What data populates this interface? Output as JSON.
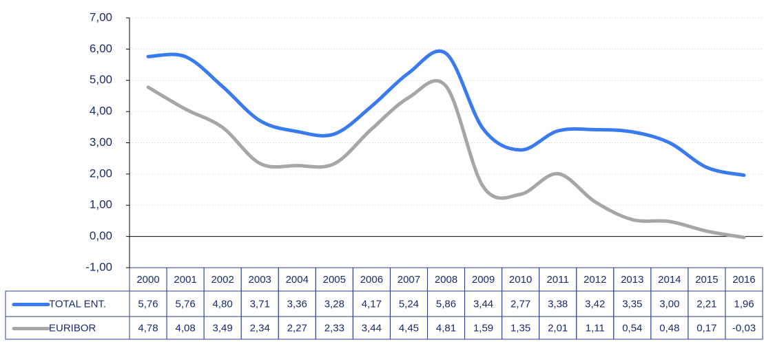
{
  "chart_data": {
    "type": "line",
    "categories": [
      "2000",
      "2001",
      "2002",
      "2003",
      "2004",
      "2005",
      "2006",
      "2007",
      "2008",
      "2009",
      "2010",
      "2011",
      "2012",
      "2013",
      "2014",
      "2015",
      "2016"
    ],
    "series": [
      {
        "name": "TOTAL ENT.",
        "color": "#3a7af0",
        "values": [
          5.76,
          5.76,
          4.8,
          3.71,
          3.36,
          3.28,
          4.17,
          5.24,
          5.86,
          3.44,
          2.77,
          3.38,
          3.42,
          3.35,
          3.0,
          2.21,
          1.96
        ],
        "value_labels": [
          "5,76",
          "5,76",
          "4,80",
          "3,71",
          "3,36",
          "3,28",
          "4,17",
          "5,24",
          "5,86",
          "3,44",
          "2,77",
          "3,38",
          "3,42",
          "3,35",
          "3,00",
          "2,21",
          "1,96"
        ]
      },
      {
        "name": "EURIBOR",
        "color": "#a6a6a6",
        "values": [
          4.78,
          4.08,
          3.49,
          2.34,
          2.27,
          2.33,
          3.44,
          4.45,
          4.81,
          1.59,
          1.35,
          2.01,
          1.11,
          0.54,
          0.48,
          0.17,
          -0.03
        ],
        "value_labels": [
          "4,78",
          "4,08",
          "3,49",
          "2,34",
          "2,27",
          "2,33",
          "3,44",
          "4,45",
          "4,81",
          "1,59",
          "1,35",
          "2,01",
          "1,11",
          "0,54",
          "0,48",
          "0,17",
          "-0,03"
        ]
      }
    ],
    "ylim": [
      -1,
      7
    ],
    "yticks": [
      {
        "value": -1,
        "label": "-1,00"
      },
      {
        "value": 0,
        "label": "0,00"
      },
      {
        "value": 1,
        "label": "1,00"
      },
      {
        "value": 2,
        "label": "2,00"
      },
      {
        "value": 3,
        "label": "3,00"
      },
      {
        "value": 4,
        "label": "4,00"
      },
      {
        "value": 5,
        "label": "5,00"
      },
      {
        "value": 6,
        "label": "6,00"
      },
      {
        "value": 7,
        "label": "7,00"
      }
    ],
    "grid": true,
    "smooth": true,
    "data_table": true
  }
}
